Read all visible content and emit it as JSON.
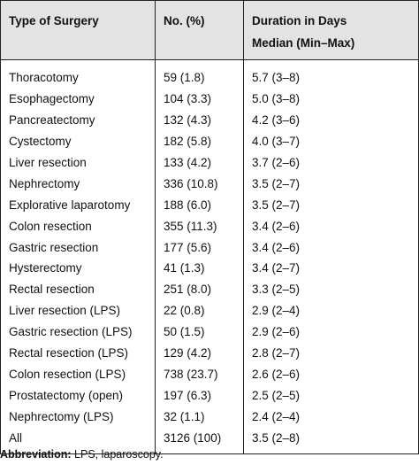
{
  "table": {
    "header": [
      "Type of Surgery",
      "No. (%)",
      [
        "Duration in Days",
        "Median (Min–Max)"
      ]
    ],
    "rows": [
      [
        "Thoracotomy",
        "59 (1.8)",
        "5.7 (3–8)"
      ],
      [
        "Esophagectomy",
        "104 (3.3)",
        "5.0 (3–8)"
      ],
      [
        "Pancreatectomy",
        "132 (4.3)",
        "4.2 (3–6)"
      ],
      [
        "Cystectomy",
        "182 (5.8)",
        "4.0 (3–7)"
      ],
      [
        "Liver resection",
        "133 (4.2)",
        "3.7 (2–6)"
      ],
      [
        "Nephrectomy",
        "336 (10.8)",
        "3.5 (2–7)"
      ],
      [
        "Explorative laparotomy",
        "188 (6.0)",
        "3.5 (2–7)"
      ],
      [
        "Colon resection",
        "355 (11.3)",
        "3.4 (2–6)"
      ],
      [
        "Gastric resection",
        "177 (5.6)",
        "3.4 (2–6)"
      ],
      [
        "Hysterectomy",
        "41 (1.3)",
        "3.4 (2–7)"
      ],
      [
        "Rectal resection",
        "251 (8.0)",
        "3.3 (2–5)"
      ],
      [
        "Liver resection (LPS)",
        "22 (0.8)",
        "2.9 (2–4)"
      ],
      [
        "Gastric resection (LPS)",
        "50 (1.5)",
        "2.9 (2–6)"
      ],
      [
        "Rectal resection (LPS)",
        "129 (4.2)",
        "2.8 (2–7)"
      ],
      [
        "Colon resection (LPS)",
        "738 (23.7)",
        "2.6 (2–6)"
      ],
      [
        "Prostatectomy (open)",
        "197 (6.3)",
        "2.5 (2–5)"
      ],
      [
        "Nephrectomy (LPS)",
        "32 (1.1)",
        "2.4 (2–4)"
      ],
      [
        "All",
        "3126 (100)",
        "3.5 (2–8)"
      ]
    ]
  },
  "footnote": {
    "label": "Abbreviation:",
    "text": "LPS, laparoscopy."
  }
}
